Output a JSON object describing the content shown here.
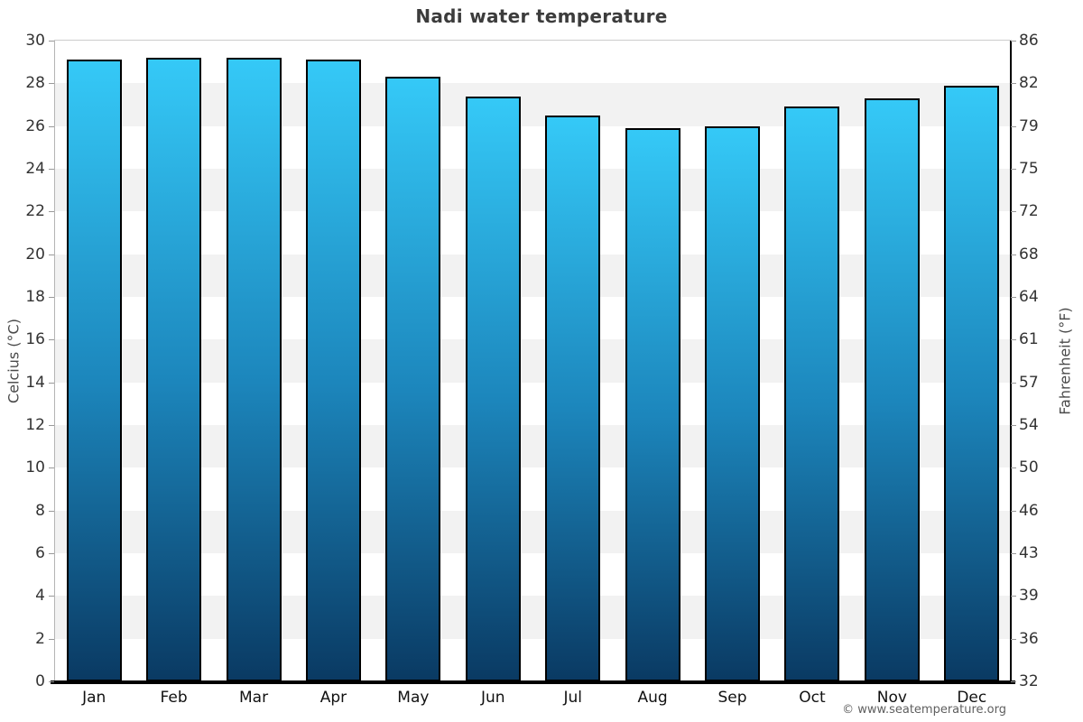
{
  "chart_data": {
    "type": "bar",
    "title": "Nadi water temperature",
    "ylabel_left": "Celcius (°C)",
    "ylabel_right": "Fahrenheit (°F)",
    "xlabel": "",
    "categories": [
      "Jan",
      "Feb",
      "Mar",
      "Apr",
      "May",
      "Jun",
      "Jul",
      "Aug",
      "Sep",
      "Oct",
      "Nov",
      "Dec"
    ],
    "values": [
      29.1,
      29.2,
      29.2,
      29.1,
      28.3,
      27.4,
      26.5,
      25.9,
      26.0,
      26.9,
      27.3,
      27.9
    ],
    "unit": "°C",
    "ylim": [
      0,
      30
    ],
    "yticks_celsius": [
      0,
      2,
      4,
      6,
      8,
      10,
      12,
      14,
      16,
      18,
      20,
      22,
      24,
      26,
      28,
      30
    ],
    "yticks_fahrenheit": [
      32,
      36,
      39,
      43,
      46,
      50,
      54,
      57,
      61,
      64,
      68,
      72,
      75,
      79,
      82,
      86
    ],
    "grid": "alternating-horizontal-bands",
    "legend_position": "none",
    "colors": {
      "bar_gradient_top": "#35c9f7",
      "bar_gradient_mid": "#1c86bc",
      "bar_gradient_bottom": "#0a3a63",
      "bar_border": "#000000",
      "band_gray": "#f2f2f2",
      "spine_light": "#b4b4b4",
      "spine_dark": "#000000",
      "tick_mark": "#999999",
      "title_text": "#3c3c3c",
      "tick_text": "#333333",
      "month_text": "#111111",
      "axis_title_text": "#4a4a4a",
      "attribution_text": "#5f5f5f"
    }
  },
  "footer": {
    "attribution": "© www.seatemperature.org"
  }
}
